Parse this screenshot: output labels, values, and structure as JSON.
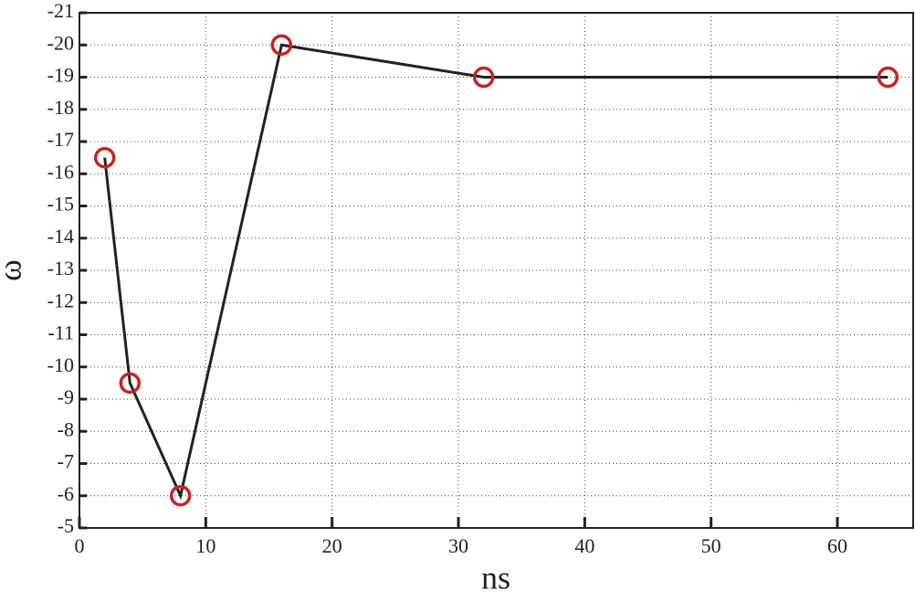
{
  "chart_data": {
    "type": "line",
    "x_label": "ns",
    "y_label": "ω",
    "x": [
      2,
      4,
      8,
      16,
      32,
      64
    ],
    "series": [
      {
        "color": "#cc2020",
        "values": [
          -16.5,
          -9.5,
          -6,
          -20,
          -19,
          -19
        ]
      }
    ],
    "line_color": "#222222",
    "xlim": [
      0,
      66
    ],
    "xticks": [
      0,
      10,
      20,
      30,
      40,
      50,
      60
    ],
    "ylim": [
      -5,
      -21
    ],
    "yticks": [
      -5,
      -6,
      -7,
      -8,
      -9,
      -10,
      -11,
      -12,
      -13,
      -14,
      -15,
      -16,
      -17,
      -18,
      -19,
      -20,
      -21
    ],
    "grid": true
  }
}
